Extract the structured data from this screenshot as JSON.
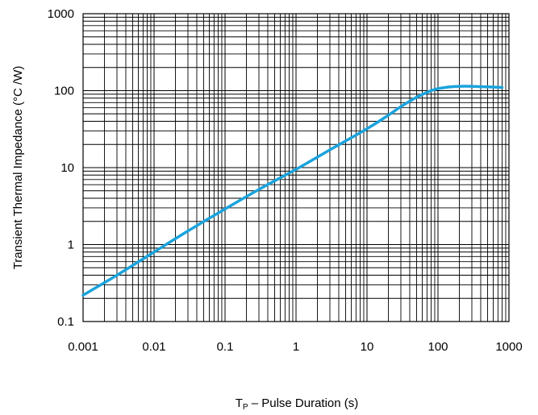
{
  "chart_data": {
    "type": "line",
    "title": "",
    "xlabel_main": "T",
    "xlabel_sub": "P",
    "xlabel_rest": " – Pulse Duration (s)",
    "ylabel": "Transient Thermal Impedance (°C /W)",
    "x_scale": "log",
    "y_scale": "log",
    "xlim": [
      0.001,
      1000
    ],
    "ylim": [
      0.1,
      1000
    ],
    "x_ticks": [
      "0.001",
      "0.01",
      "0.1",
      "1",
      "10",
      "100",
      "1000"
    ],
    "y_ticks": [
      "0.1",
      "1",
      "10",
      "100",
      "1000"
    ],
    "grid": true,
    "series": [
      {
        "color": "#1aa3dc",
        "x": [
          0.001,
          0.003,
          0.01,
          0.03,
          0.1,
          0.3,
          1,
          3,
          10,
          20,
          30,
          50,
          80,
          100,
          150,
          200,
          300,
          500,
          800
        ],
        "y": [
          0.22,
          0.4,
          0.8,
          1.5,
          2.9,
          5.2,
          9.5,
          17,
          32,
          48,
          62,
          82,
          100,
          106,
          112,
          114,
          114,
          112,
          110
        ]
      }
    ]
  }
}
